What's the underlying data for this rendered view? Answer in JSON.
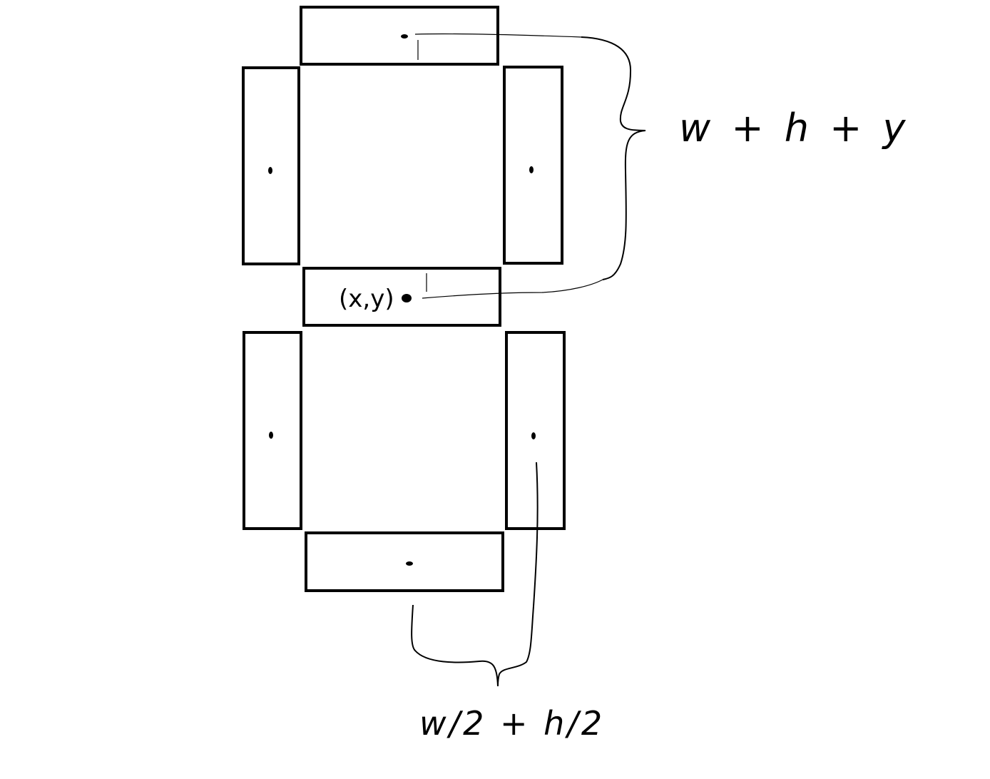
{
  "segments": [
    {
      "id": "a",
      "orientation": "horizontal"
    },
    {
      "id": "f",
      "orientation": "vertical"
    },
    {
      "id": "b",
      "orientation": "vertical"
    },
    {
      "id": "g",
      "orientation": "horizontal"
    },
    {
      "id": "e",
      "orientation": "vertical"
    },
    {
      "id": "c",
      "orientation": "vertical"
    },
    {
      "id": "d",
      "orientation": "horizontal"
    }
  ],
  "point_label": "(x,y)",
  "upper_expression": "w + h + y",
  "lower_expression": "w/2 + h/2",
  "colors": {
    "stroke": "#000000",
    "background": "#ffffff"
  }
}
